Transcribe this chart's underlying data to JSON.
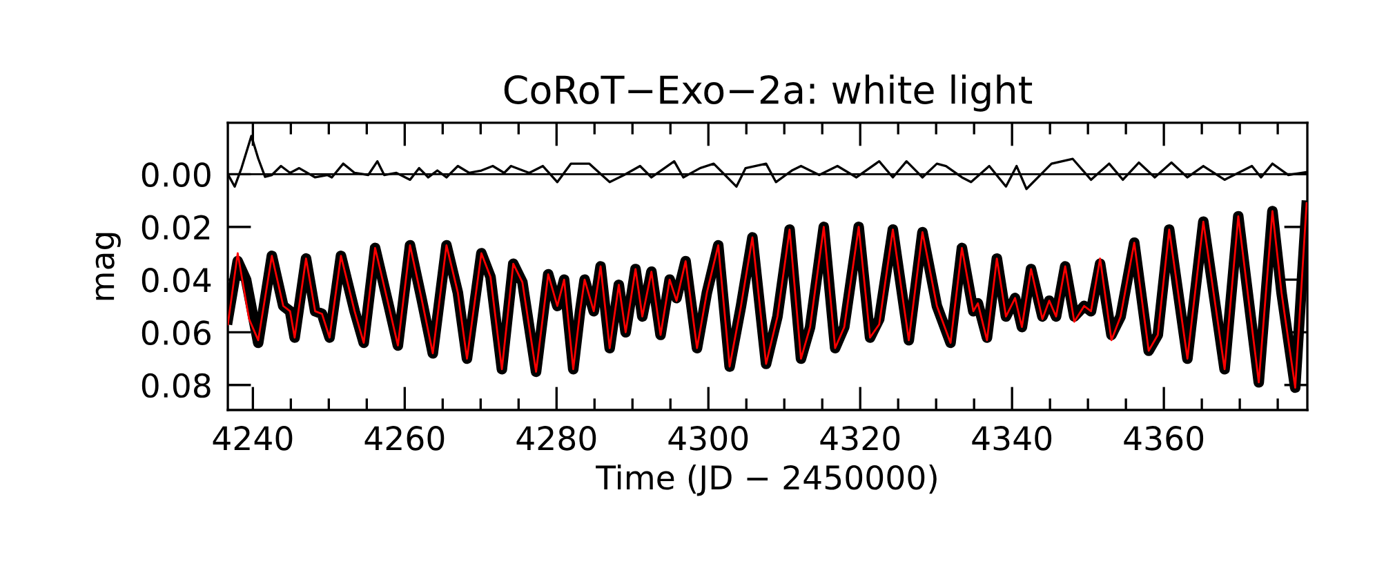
{
  "chart_data": {
    "type": "line",
    "title": "CoRoT−Exo−2a: white light",
    "xlabel": "Time (JD − 2450000)",
    "ylabel": "mag",
    "xlim": [
      4236.7,
      4378.9
    ],
    "ylim": [
      0.0895,
      -0.0195
    ],
    "xticks": [
      4240,
      {
        "value": 4245,
        "label": null
      },
      {
        "value": 4250,
        "label": null
      },
      {
        "value": 4255,
        "label": null
      },
      4260,
      {
        "value": 4265,
        "label": null
      },
      {
        "value": 4270,
        "label": null
      },
      {
        "value": 4275,
        "label": null
      },
      4280,
      {
        "value": 4285,
        "label": null
      },
      {
        "value": 4290,
        "label": null
      },
      {
        "value": 4295,
        "label": null
      },
      4300,
      {
        "value": 4305,
        "label": null
      },
      {
        "value": 4310,
        "label": null
      },
      {
        "value": 4315,
        "label": null
      },
      4320,
      {
        "value": 4325,
        "label": null
      },
      {
        "value": 4330,
        "label": null
      },
      {
        "value": 4335,
        "label": null
      },
      4340,
      {
        "value": 4345,
        "label": null
      },
      {
        "value": 4350,
        "label": null
      },
      {
        "value": 4355,
        "label": null
      },
      4360,
      {
        "value": 4365,
        "label": null
      },
      {
        "value": 4370,
        "label": null
      },
      {
        "value": 4375,
        "label": null
      }
    ],
    "yticks": [
      {
        "value": 0,
        "label": "0.00"
      },
      {
        "value": 0.02,
        "label": "0.02"
      },
      {
        "value": 0.04,
        "label": "0.04"
      },
      {
        "value": 0.06,
        "label": "0.06"
      },
      {
        "value": 0.08,
        "label": "0.08"
      }
    ],
    "grid": false,
    "marker": "none",
    "line_style": "solid",
    "ref_lines": [
      {
        "axis": "y",
        "value": 0,
        "color": "#000000"
      }
    ],
    "series": [
      {
        "color": "#000000",
        "x": [
          4236.7,
          4238.0,
          4239.1,
          4240.7,
          4242.5,
          4244.0,
          4244.9,
          4245.5,
          4247.0,
          4248.2,
          4249.1,
          4250.1,
          4251.6,
          4253.4,
          4254.6,
          4256.1,
          4257.9,
          4259.1,
          4260.7,
          4262.2,
          4263.7,
          4265.5,
          4267.0,
          4268.2,
          4270.1,
          4271.3,
          4272.8,
          4274.3,
          4275.5,
          4277.3,
          4278.9,
          4280.1,
          4281.0,
          4282.2,
          4283.1,
          4283.7,
          4284.9,
          4285.8,
          4287.0,
          4288.2,
          4289.1,
          4290.4,
          4291.3,
          4292.5,
          4293.7,
          4294.9,
          4295.8,
          4297.0,
          4298.5,
          4299.8,
          4301.3,
          4302.8,
          4304.3,
          4305.8,
          4307.6,
          4309.1,
          4310.7,
          4312.2,
          4313.4,
          4315.2,
          4316.7,
          4317.9,
          4319.8,
          4321.3,
          4322.5,
          4324.3,
          4326.4,
          4328.2,
          4330.1,
          4331.9,
          4333.4,
          4334.9,
          4335.5,
          4336.7,
          4338.0,
          4339.2,
          4340.4,
          4341.3,
          4342.5,
          4344.0,
          4344.9,
          4345.8,
          4347.0,
          4348.2,
          4349.5,
          4350.4,
          4351.6,
          4353.1,
          4354.3,
          4356.1,
          4358.0,
          4359.2,
          4360.7,
          4363.1,
          4365.2,
          4368.0,
          4369.8,
          4372.5,
          4374.3,
          4375.5,
          4377.3,
          4378.8
        ],
        "values": [
          0.055,
          0.033,
          0.04,
          0.064,
          0.031,
          0.05,
          0.052,
          0.062,
          0.032,
          0.052,
          0.053,
          0.062,
          0.031,
          0.052,
          0.064,
          0.028,
          0.05,
          0.065,
          0.027,
          0.047,
          0.068,
          0.027,
          0.045,
          0.07,
          0.03,
          0.039,
          0.074,
          0.034,
          0.041,
          0.075,
          0.038,
          0.05,
          0.04,
          0.074,
          0.052,
          0.04,
          0.052,
          0.035,
          0.066,
          0.042,
          0.06,
          0.036,
          0.054,
          0.037,
          0.061,
          0.04,
          0.047,
          0.033,
          0.066,
          0.045,
          0.027,
          0.073,
          0.05,
          0.024,
          0.072,
          0.054,
          0.021,
          0.07,
          0.058,
          0.02,
          0.066,
          0.058,
          0.02,
          0.062,
          0.055,
          0.021,
          0.063,
          0.022,
          0.05,
          0.064,
          0.028,
          0.052,
          0.049,
          0.062,
          0.032,
          0.054,
          0.047,
          0.058,
          0.036,
          0.054,
          0.048,
          0.054,
          0.035,
          0.054,
          0.05,
          0.052,
          0.034,
          0.061,
          0.054,
          0.026,
          0.067,
          0.061,
          0.021,
          0.07,
          0.018,
          0.074,
          0.016,
          0.079,
          0.014,
          0.045,
          0.081,
          0.012
        ]
      },
      {
        "color": "#ff0000",
        "x": [
          4236.7,
          4238.0,
          4239.5,
          4240.7,
          4242.5,
          4244.0,
          4244.9,
          4245.5,
          4247.0,
          4248.2,
          4249.1,
          4250.1,
          4251.6,
          4253.4,
          4254.6,
          4256.1,
          4257.9,
          4259.1,
          4260.7,
          4262.2,
          4263.7,
          4265.5,
          4267.0,
          4268.2,
          4270.1,
          4271.3,
          4272.8,
          4274.3,
          4275.5,
          4277.3,
          4278.9,
          4280.1,
          4281.0,
          4282.2,
          4283.1,
          4283.7,
          4284.9,
          4285.8,
          4287.0,
          4288.2,
          4289.1,
          4290.4,
          4291.3,
          4292.5,
          4293.7,
          4294.9,
          4295.8,
          4297.0,
          4298.5,
          4299.8,
          4301.3,
          4302.8,
          4304.3,
          4305.8,
          4307.6,
          4309.1,
          4310.7,
          4312.2,
          4313.4,
          4315.2,
          4316.7,
          4317.9,
          4319.8,
          4321.3,
          4322.5,
          4324.3,
          4326.4,
          4328.2,
          4330.1,
          4331.9,
          4333.4,
          4334.9,
          4335.5,
          4336.7,
          4338.0,
          4339.2,
          4340.4,
          4341.3,
          4342.5,
          4344.0,
          4344.9,
          4345.8,
          4347.0,
          4348.2,
          4349.5,
          4350.4,
          4351.6,
          4353.1,
          4354.3,
          4356.1,
          4358.0,
          4359.2,
          4360.7,
          4363.1,
          4365.2,
          4368.0,
          4369.8,
          4372.5,
          4374.3,
          4375.5,
          4377.3,
          4378.8
        ],
        "values": [
          0.057,
          0.03,
          0.055,
          0.063,
          0.031,
          0.05,
          0.052,
          0.062,
          0.032,
          0.052,
          0.053,
          0.062,
          0.031,
          0.052,
          0.064,
          0.028,
          0.05,
          0.065,
          0.027,
          0.047,
          0.068,
          0.027,
          0.045,
          0.07,
          0.03,
          0.039,
          0.074,
          0.034,
          0.041,
          0.075,
          0.038,
          0.05,
          0.04,
          0.074,
          0.052,
          0.04,
          0.052,
          0.035,
          0.066,
          0.042,
          0.06,
          0.036,
          0.054,
          0.037,
          0.061,
          0.04,
          0.048,
          0.033,
          0.066,
          0.045,
          0.027,
          0.073,
          0.05,
          0.024,
          0.072,
          0.054,
          0.021,
          0.07,
          0.058,
          0.02,
          0.066,
          0.058,
          0.02,
          0.062,
          0.057,
          0.021,
          0.063,
          0.022,
          0.05,
          0.064,
          0.028,
          0.052,
          0.049,
          0.063,
          0.032,
          0.054,
          0.047,
          0.058,
          0.036,
          0.055,
          0.048,
          0.054,
          0.035,
          0.056,
          0.05,
          0.052,
          0.032,
          0.063,
          0.054,
          0.026,
          0.067,
          0.061,
          0.021,
          0.07,
          0.018,
          0.074,
          0.016,
          0.079,
          0.014,
          0.045,
          0.081,
          0.011
        ]
      },
      {
        "color": "#000000",
        "x": [
          4236.7,
          4237.6,
          4238.5,
          4239.8,
          4240.7,
          4241.6,
          4242.5,
          4243.7,
          4244.9,
          4246.1,
          4248.2,
          4249.8,
          4250.4,
          4251.9,
          4253.4,
          4255.2,
          4256.4,
          4257.3,
          4258.9,
          4260.7,
          4261.9,
          4263.1,
          4264.3,
          4265.5,
          4267.0,
          4268.5,
          4270.1,
          4271.6,
          4273.1,
          4274.0,
          4276.4,
          4278.2,
          4280.1,
          4281.9,
          4284.3,
          4287.0,
          4288.9,
          4291.0,
          4292.5,
          4295.5,
          4296.7,
          4298.9,
          4300.7,
          4303.7,
          4304.9,
          4307.6,
          4308.9,
          4311.0,
          4312.2,
          4314.6,
          4317.0,
          4319.5,
          4322.5,
          4324.3,
          4326.1,
          4328.2,
          4330.1,
          4331.3,
          4333.4,
          4334.6,
          4337.0,
          4339.2,
          4340.6,
          4341.9,
          4345.2,
          4348.0,
          4350.4,
          4352.8,
          4354.6,
          4356.7,
          4358.8,
          4361.0,
          4363.1,
          4365.2,
          4368.0,
          4371.6,
          4372.8,
          4374.3,
          4376.4,
          4378.8
        ],
        "values": [
          0.0,
          0.0047,
          -0.0023,
          -0.0145,
          -0.006,
          0.001,
          0.0003,
          -0.0031,
          -0.0005,
          -0.0023,
          0.0012,
          0.0003,
          0.0012,
          -0.004,
          -0.0005,
          0.0003,
          -0.0049,
          0.0003,
          -0.0005,
          0.0021,
          -0.0023,
          0.0012,
          -0.0014,
          0.0012,
          -0.0031,
          -0.0005,
          -0.0014,
          -0.0031,
          -0.0005,
          -0.0031,
          -0.0005,
          -0.0031,
          0.003,
          -0.004,
          -0.004,
          0.003,
          0.0003,
          -0.0031,
          0.0012,
          -0.0049,
          0.0012,
          -0.0023,
          -0.004,
          0.0047,
          -0.0023,
          -0.004,
          0.003,
          -0.0014,
          -0.0031,
          0.0003,
          -0.0031,
          0.0012,
          -0.0049,
          0.0012,
          -0.0049,
          0.0012,
          -0.004,
          -0.0031,
          0.0012,
          0.003,
          -0.0031,
          0.0047,
          -0.0031,
          0.0056,
          -0.004,
          -0.0058,
          0.0021,
          -0.004,
          0.0021,
          -0.0044,
          0.0012,
          -0.0044,
          0.0012,
          -0.0031,
          0.0021,
          -0.0031,
          0.0012,
          -0.004,
          0.0003,
          -0.0008
        ]
      }
    ]
  }
}
